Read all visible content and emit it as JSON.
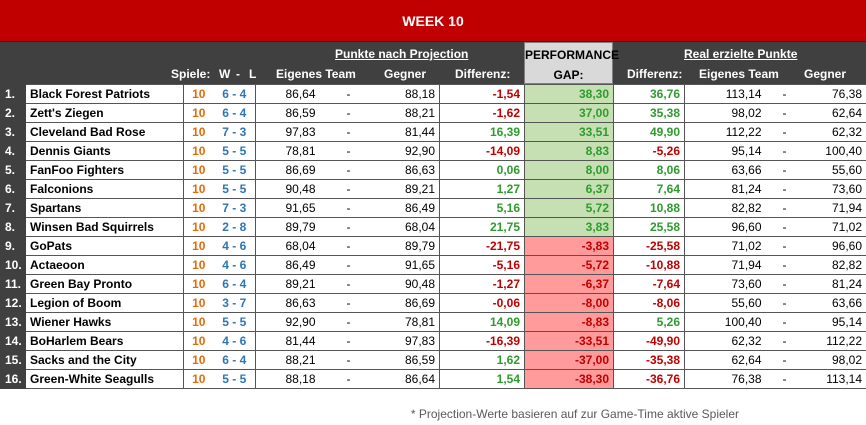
{
  "title": "WEEK 10",
  "headers": {
    "projection_group": "Punkte nach Projection",
    "performance_line1": "PERFORMANCE",
    "performance_line2": "GAP:",
    "real_group": "Real erzielte Punkte",
    "spiele": "Spiele:",
    "w": "W",
    "dash": "-",
    "l": "L",
    "own_team": "Eigenes Team",
    "opponent": "Gegner",
    "difference": "Differenz:",
    "difference_real": "Differenz:",
    "own_team_real": "Eigenes Team",
    "opponent_real": "Gegner"
  },
  "separator": "-",
  "rows": [
    {
      "rank": "1.",
      "team": "Black Forest Patriots",
      "games": "10",
      "wl": "6 - 4",
      "proj_own": "86,64",
      "proj_opp": "88,18",
      "proj_diff": "-1,54",
      "gap": "38,30",
      "real_diff": "36,76",
      "real_own": "113,14",
      "real_opp": "76,38"
    },
    {
      "rank": "2.",
      "team": "Zett's Ziegen",
      "games": "10",
      "wl": "6 - 4",
      "proj_own": "86,59",
      "proj_opp": "88,21",
      "proj_diff": "-1,62",
      "gap": "37,00",
      "real_diff": "35,38",
      "real_own": "98,02",
      "real_opp": "62,64"
    },
    {
      "rank": "3.",
      "team": "Cleveland Bad Rose",
      "games": "10",
      "wl": "7 - 3",
      "proj_own": "97,83",
      "proj_opp": "81,44",
      "proj_diff": "16,39",
      "gap": "33,51",
      "real_diff": "49,90",
      "real_own": "112,22",
      "real_opp": "62,32"
    },
    {
      "rank": "4.",
      "team": "Dennis Giants",
      "games": "10",
      "wl": "5 - 5",
      "proj_own": "78,81",
      "proj_opp": "92,90",
      "proj_diff": "-14,09",
      "gap": "8,83",
      "real_diff": "-5,26",
      "real_own": "95,14",
      "real_opp": "100,40"
    },
    {
      "rank": "5.",
      "team": "FanFoo Fighters",
      "games": "10",
      "wl": "5 - 5",
      "proj_own": "86,69",
      "proj_opp": "86,63",
      "proj_diff": "0,06",
      "gap": "8,00",
      "real_diff": "8,06",
      "real_own": "63,66",
      "real_opp": "55,60"
    },
    {
      "rank": "6.",
      "team": "Falconions",
      "games": "10",
      "wl": "5 - 5",
      "proj_own": "90,48",
      "proj_opp": "89,21",
      "proj_diff": "1,27",
      "gap": "6,37",
      "real_diff": "7,64",
      "real_own": "81,24",
      "real_opp": "73,60"
    },
    {
      "rank": "7.",
      "team": "Spartans",
      "games": "10",
      "wl": "7 - 3",
      "proj_own": "91,65",
      "proj_opp": "86,49",
      "proj_diff": "5,16",
      "gap": "5,72",
      "real_diff": "10,88",
      "real_own": "82,82",
      "real_opp": "71,94"
    },
    {
      "rank": "8.",
      "team": "Winsen Bad Squirrels",
      "games": "10",
      "wl": "2 - 8",
      "proj_own": "89,79",
      "proj_opp": "68,04",
      "proj_diff": "21,75",
      "gap": "3,83",
      "real_diff": "25,58",
      "real_own": "96,60",
      "real_opp": "71,02"
    },
    {
      "rank": "9.",
      "team": "GoPats",
      "games": "10",
      "wl": "4 - 6",
      "proj_own": "68,04",
      "proj_opp": "89,79",
      "proj_diff": "-21,75",
      "gap": "-3,83",
      "real_diff": "-25,58",
      "real_own": "71,02",
      "real_opp": "96,60"
    },
    {
      "rank": "10.",
      "team": "Actaeoon",
      "games": "10",
      "wl": "4 - 6",
      "proj_own": "86,49",
      "proj_opp": "91,65",
      "proj_diff": "-5,16",
      "gap": "-5,72",
      "real_diff": "-10,88",
      "real_own": "71,94",
      "real_opp": "82,82"
    },
    {
      "rank": "11.",
      "team": "Green Bay Pronto",
      "games": "10",
      "wl": "6 - 4",
      "proj_own": "89,21",
      "proj_opp": "90,48",
      "proj_diff": "-1,27",
      "gap": "-6,37",
      "real_diff": "-7,64",
      "real_own": "73,60",
      "real_opp": "81,24"
    },
    {
      "rank": "12.",
      "team": "Legion of Boom",
      "games": "10",
      "wl": "3 - 7",
      "proj_own": "86,63",
      "proj_opp": "86,69",
      "proj_diff": "-0,06",
      "gap": "-8,00",
      "real_diff": "-8,06",
      "real_own": "55,60",
      "real_opp": "63,66"
    },
    {
      "rank": "13.",
      "team": "Wiener Hawks",
      "games": "10",
      "wl": "5 - 5",
      "proj_own": "92,90",
      "proj_opp": "78,81",
      "proj_diff": "14,09",
      "gap": "-8,83",
      "real_diff": "5,26",
      "real_own": "100,40",
      "real_opp": "95,14"
    },
    {
      "rank": "14.",
      "team": "BoHarlem Bears",
      "games": "10",
      "wl": "4 - 6",
      "proj_own": "81,44",
      "proj_opp": "97,83",
      "proj_diff": "-16,39",
      "gap": "-33,51",
      "real_diff": "-49,90",
      "real_own": "62,32",
      "real_opp": "112,22"
    },
    {
      "rank": "15.",
      "team": "Sacks and the City",
      "games": "10",
      "wl": "6 - 4",
      "proj_own": "88,21",
      "proj_opp": "86,59",
      "proj_diff": "1,62",
      "gap": "-37,00",
      "real_diff": "-35,38",
      "real_own": "62,64",
      "real_opp": "98,02"
    },
    {
      "rank": "16.",
      "team": "Green-White Seagulls",
      "games": "10",
      "wl": "5 - 5",
      "proj_own": "88,18",
      "proj_opp": "86,64",
      "proj_diff": "1,54",
      "gap": "-38,30",
      "real_diff": "-36,76",
      "real_own": "76,38",
      "real_opp": "113,14"
    }
  ],
  "footnote": "* Projection-Werte basieren auf zur Game-Time aktive Spieler",
  "colors": {
    "header_red": "#c00000",
    "header_dark": "#404040",
    "positive": "#2e9b2e",
    "negative": "#c00000",
    "gap_positive_bg": "#c6e0b4",
    "gap_negative_bg": "#ff9b9b",
    "games": "#e26b0a",
    "record": "#2e75b6"
  }
}
